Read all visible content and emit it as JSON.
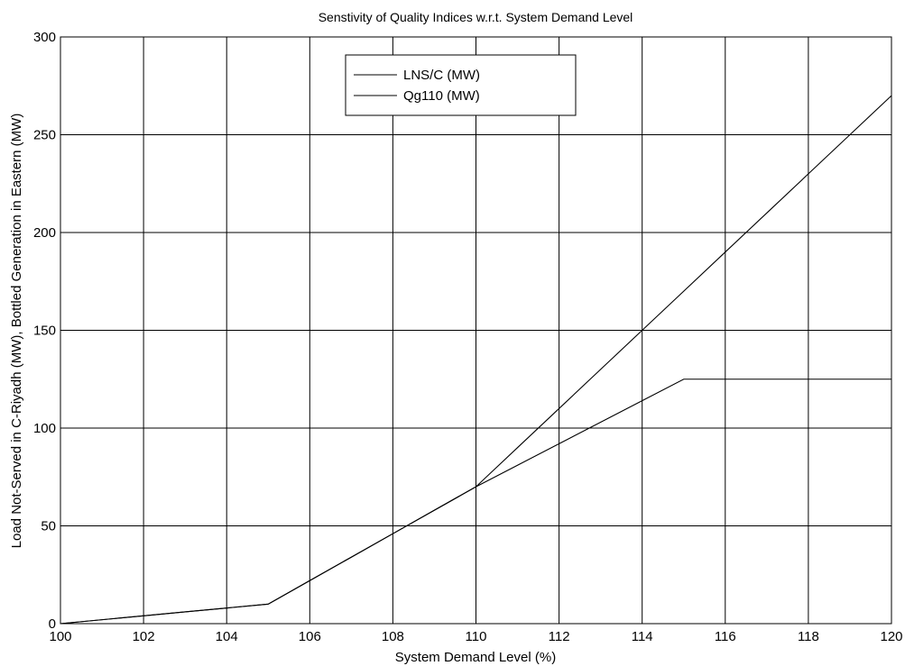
{
  "chart_data": {
    "type": "line",
    "title": "Senstivity of Quality Indices w.r.t. System Demand Level",
    "xlabel": "System Demand Level (%)",
    "ylabel": "Load Not-Served in C-Riyadh (MW), Bottled Generation in Eastern (MW)",
    "xlim": [
      100,
      120
    ],
    "ylim": [
      0,
      300
    ],
    "xticks": [
      100,
      102,
      104,
      106,
      108,
      110,
      112,
      114,
      116,
      118,
      120
    ],
    "yticks": [
      0,
      50,
      100,
      150,
      200,
      250,
      300
    ],
    "grid": true,
    "legend_position": "top-center",
    "line_color": "#000000",
    "series": [
      {
        "name": "LNS/C (MW)",
        "x": [
          100,
          102,
          103,
          104,
          105,
          106,
          107,
          108,
          109,
          110,
          111,
          112,
          113,
          114,
          115,
          116,
          117,
          118,
          119,
          120
        ],
        "y": [
          0,
          4,
          6,
          8,
          10,
          22,
          34,
          46,
          58,
          70,
          90,
          110,
          130,
          150,
          170,
          190,
          210,
          230,
          250,
          270
        ]
      },
      {
        "name": "Qg110 (MW)",
        "x": [
          100,
          102,
          103,
          104,
          105,
          106,
          107,
          108,
          109,
          110,
          111,
          112,
          113,
          114,
          115,
          116,
          117,
          118,
          119,
          120
        ],
        "y": [
          0,
          4,
          6,
          8,
          10,
          22,
          34,
          46,
          58,
          70,
          81,
          92,
          103,
          114,
          125,
          125,
          125,
          125,
          125,
          125
        ]
      }
    ]
  }
}
